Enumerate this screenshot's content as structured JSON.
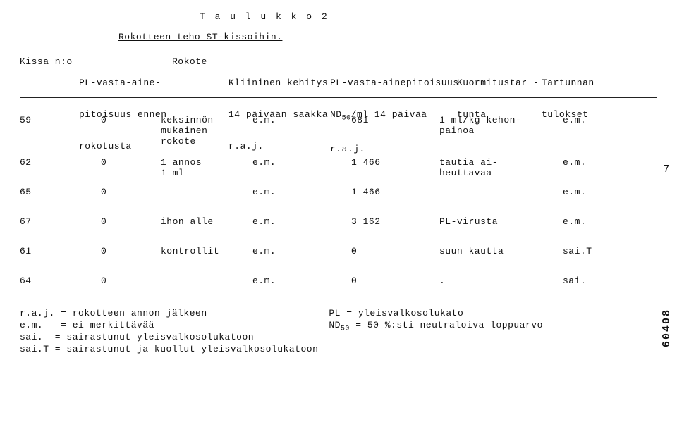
{
  "title_text": "T a u l u k k o 2",
  "subtitle_text": "Rokotteen teho ST-kissoihin.",
  "hdr": {
    "kissa": "Kissa n:o",
    "pl1": "PL-vasta-aine-",
    "pl2": "pitoisuus ennen",
    "pl3": "rokotusta",
    "rokote": "Rokote",
    "klin1": "Kliininen kehitys",
    "klin2": "14 päivään saakka",
    "klin3": "r.a.j.",
    "pla2_1": "PL-vasta-ainepitoisuus",
    "pla2_2": "ND",
    "pla2_2b": "50",
    "pla2_2c": "/ml 14 päivää",
    "pla2_3": "r.a.j.",
    "kuorm1": "Kuormitustar -",
    "kuorm2": "tunta",
    "tart1": "Tartunnan",
    "tart2": "tulokset"
  },
  "rows": [
    {
      "n": "59",
      "pl": "0",
      "rok": "keksinnön\nmukainen\nrokote",
      "keh": "e.m.",
      "nd": "681",
      "kuor": "1 ml/kg kehon-\npainoa",
      "tul": "e.m.",
      "h": "tall"
    },
    {
      "n": "62",
      "pl": "0",
      "rok": "1 annos =\n1 ml",
      "keh": "e.m.",
      "nd": "1 466",
      "kuor": "tautia ai-\nheuttavaa",
      "tul": "e.m.",
      "h": "mid"
    },
    {
      "n": "65",
      "pl": "0",
      "rok": "",
      "keh": "e.m.",
      "nd": "1 466",
      "kuor": "",
      "tul": "e.m.",
      "h": "mid"
    },
    {
      "n": "67",
      "pl": "0",
      "rok": "ihon alle",
      "keh": "e.m.",
      "nd": "3 162",
      "kuor": "PL-virusta",
      "tul": "e.m.",
      "h": "mid"
    },
    {
      "n": "61",
      "pl": "0",
      "rok": "kontrollit",
      "keh": "e.m.",
      "nd": "0",
      "kuor": "suun kautta",
      "tul": "sai.T",
      "h": "mid"
    },
    {
      "n": "64",
      "pl": "0",
      "rok": "",
      "keh": "e.m.",
      "nd": "0",
      "kuor": ".",
      "tul": "sai.",
      "h": "short"
    }
  ],
  "legend": {
    "l1": "r.a.j. = rokotteen annon jälkeen",
    "l2": "e.m.   = ei merkittävää",
    "l3": "sai.  = sairastunut yleisvalkosolukatoon",
    "l4": "sai.T = sairastunut ja kuollut yleisvalkosolukatoon",
    "r1": "PL = yleisvalkosolukato",
    "r2a": "ND",
    "r2b": "50",
    "r2c": " = 50 %:sti neutraloiva loppuarvo"
  },
  "side_number": "60408",
  "side_seven": "7"
}
